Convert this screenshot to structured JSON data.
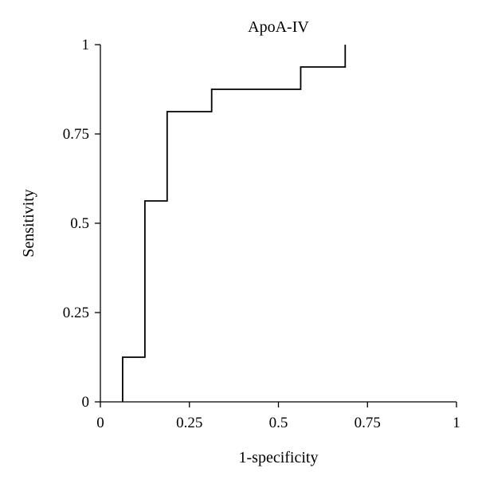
{
  "chart_data": {
    "type": "line",
    "title": "ApoA-IV",
    "xlabel": "1-specificity",
    "ylabel": "Sensitivity",
    "xlim": [
      0,
      1
    ],
    "ylim": [
      0,
      1
    ],
    "xticks": [
      0,
      0.25,
      0.5,
      0.75,
      1
    ],
    "yticks": [
      0,
      0.25,
      0.5,
      0.75,
      1
    ],
    "xtick_labels": [
      "0",
      "0.25",
      "0.5",
      "0.75",
      "1"
    ],
    "ytick_labels": [
      "0",
      "0.25",
      "0.5",
      "0.75",
      "1"
    ],
    "grid": false,
    "legend": "none",
    "line_color": "#000000",
    "series": [
      {
        "x": [
          0.0625,
          0.0625,
          0.125,
          0.125,
          0.1875,
          0.1875,
          0.3125,
          0.3125,
          0.5625,
          0.5625,
          0.6875,
          0.6875
        ],
        "y": [
          0,
          0.125,
          0.125,
          0.5625,
          0.5625,
          0.8125,
          0.8125,
          0.875,
          0.875,
          0.9375,
          0.9375,
          1
        ]
      }
    ]
  }
}
